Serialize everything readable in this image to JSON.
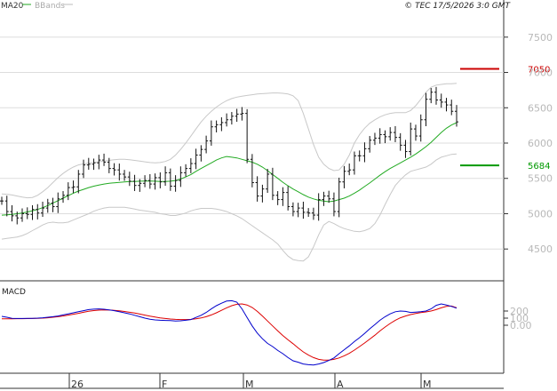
{
  "header": {
    "legend": [
      {
        "label": "MA20",
        "color": "#22aa22"
      },
      {
        "label": "BBands",
        "color": "#bbbbbb"
      }
    ],
    "copyright": "© TEC 17/5/2026 3:0 GMT"
  },
  "macd_panel": {
    "title": "MACD"
  },
  "chart_data": [
    {
      "type": "ohlc",
      "ylim": [
        4100,
        7900
      ],
      "y_ticks": [
        4500,
        5000,
        5500,
        6000,
        6500,
        7000,
        7500
      ],
      "y_tick_labels": [
        "4500",
        "5000",
        "5500",
        "6000",
        "6500",
        "7000",
        "7500"
      ],
      "grid": true,
      "x_tick_labels": [
        "26",
        "F",
        "M",
        "A",
        "M"
      ],
      "levels": [
        {
          "label": "7050",
          "value": 7050,
          "color": "#cc0000"
        },
        {
          "label": "5684",
          "value": 5684,
          "color": "#009900"
        }
      ],
      "series": [
        {
          "name": "Price",
          "values": [
            5180,
            5030,
            4970,
            4940,
            5000,
            4990,
            5060,
            5010,
            5080,
            5150,
            5100,
            5210,
            5260,
            5370,
            5380,
            5560,
            5690,
            5700,
            5720,
            5760,
            5730,
            5640,
            5620,
            5560,
            5520,
            5460,
            5400,
            5430,
            5470,
            5420,
            5510,
            5450,
            5580,
            5390,
            5470,
            5580,
            5640,
            5710,
            5830,
            5910,
            6030,
            6230,
            6260,
            6290,
            6330,
            6380,
            6410,
            6420,
            5770,
            5440,
            5250,
            5350,
            5560,
            5260,
            5200,
            5300,
            5100,
            5030,
            5080,
            5020,
            5010,
            4980,
            5200,
            5250,
            5210,
            5030,
            5450,
            5600,
            5620,
            5820,
            5820,
            5920,
            6040,
            6070,
            6120,
            6090,
            6150,
            6080,
            5970,
            5880,
            6200,
            6100,
            6330,
            6620,
            6720,
            6610,
            6580,
            6540,
            6450,
            6300
          ]
        },
        {
          "name": "MA20",
          "values": [
            4980,
            4985,
            4990,
            5000,
            5010,
            5025,
            5040,
            5060,
            5085,
            5115,
            5150,
            5185,
            5220,
            5255,
            5290,
            5320,
            5345,
            5370,
            5390,
            5405,
            5420,
            5430,
            5437,
            5444,
            5450,
            5455,
            5457,
            5460,
            5462,
            5462,
            5460,
            5457,
            5456,
            5460,
            5470,
            5490,
            5520,
            5555,
            5600,
            5640,
            5680,
            5720,
            5760,
            5790,
            5810,
            5800,
            5790,
            5770,
            5750,
            5730,
            5700,
            5660,
            5610,
            5555,
            5500,
            5445,
            5395,
            5350,
            5310,
            5270,
            5235,
            5210,
            5190,
            5180,
            5170,
            5180,
            5200,
            5220,
            5250,
            5290,
            5335,
            5385,
            5435,
            5490,
            5545,
            5595,
            5640,
            5680,
            5720,
            5760,
            5800,
            5845,
            5895,
            5950,
            6010,
            6080,
            6150,
            6210,
            6255,
            6290
          ]
        },
        {
          "name": "BBands upper",
          "values": [
            5280,
            5275,
            5265,
            5250,
            5235,
            5225,
            5230,
            5260,
            5310,
            5370,
            5440,
            5510,
            5570,
            5620,
            5660,
            5690,
            5705,
            5715,
            5725,
            5735,
            5745,
            5755,
            5765,
            5770,
            5770,
            5765,
            5755,
            5745,
            5735,
            5725,
            5720,
            5725,
            5740,
            5770,
            5830,
            5910,
            6000,
            6100,
            6200,
            6300,
            6380,
            6450,
            6510,
            6560,
            6600,
            6630,
            6650,
            6665,
            6675,
            6685,
            6695,
            6700,
            6705,
            6710,
            6710,
            6705,
            6695,
            6670,
            6600,
            6420,
            6200,
            5980,
            5800,
            5700,
            5640,
            5610,
            5620,
            5700,
            5830,
            6000,
            6120,
            6210,
            6280,
            6330,
            6370,
            6400,
            6420,
            6430,
            6430,
            6430,
            6460,
            6530,
            6620,
            6720,
            6790,
            6820,
            6830,
            6840,
            6840,
            6845
          ]
        },
        {
          "name": "BBands lower",
          "values": [
            4640,
            4650,
            4660,
            4670,
            4690,
            4720,
            4760,
            4800,
            4840,
            4870,
            4880,
            4870,
            4870,
            4880,
            4910,
            4940,
            4970,
            5000,
            5035,
            5060,
            5080,
            5090,
            5090,
            5090,
            5090,
            5080,
            5065,
            5050,
            5040,
            5030,
            5020,
            5000,
            4990,
            4975,
            4975,
            4990,
            5010,
            5040,
            5060,
            5075,
            5075,
            5075,
            5065,
            5050,
            5030,
            5000,
            4970,
            4930,
            4880,
            4830,
            4780,
            4730,
            4680,
            4630,
            4570,
            4480,
            4400,
            4350,
            4335,
            4330,
            4390,
            4530,
            4700,
            4840,
            4890,
            4860,
            4820,
            4790,
            4770,
            4750,
            4745,
            4760,
            4790,
            4860,
            4980,
            5130,
            5270,
            5400,
            5480,
            5550,
            5600,
            5620,
            5640,
            5660,
            5700,
            5760,
            5800,
            5820,
            5840,
            5845
          ]
        }
      ]
    },
    {
      "type": "line",
      "ylim": [
        -650,
        600
      ],
      "y_ticks": [
        0,
        100,
        200
      ],
      "y_tick_labels": [
        "0.00",
        "100",
        "200"
      ],
      "series": [
        {
          "name": "MACD",
          "values": [
            125,
            112,
            98,
            95,
            95,
            96,
            98,
            100,
            105,
            112,
            120,
            130,
            145,
            160,
            175,
            190,
            205,
            220,
            226,
            230,
            225,
            215,
            205,
            190,
            175,
            160,
            140,
            120,
            100,
            85,
            75,
            70,
            68,
            65,
            60,
            63,
            70,
            80,
            110,
            140,
            180,
            230,
            275,
            310,
            340,
            345,
            325,
            230,
            110,
            -10,
            -110,
            -190,
            -255,
            -300,
            -355,
            -400,
            -455,
            -500,
            -520,
            -545,
            -555,
            -560,
            -545,
            -525,
            -495,
            -460,
            -400,
            -345,
            -290,
            -230,
            -175,
            -115,
            -50,
            10,
            70,
            120,
            160,
            190,
            200,
            195,
            180,
            185,
            190,
            200,
            230,
            280,
            300,
            285,
            265,
            240
          ]
        },
        {
          "name": "Signal",
          "values": [
            90,
            90,
            91,
            92,
            93,
            94,
            95,
            97,
            100,
            105,
            112,
            120,
            130,
            142,
            155,
            168,
            182,
            196,
            206,
            212,
            215,
            214,
            210,
            203,
            194,
            183,
            171,
            157,
            143,
            128,
            115,
            104,
            95,
            88,
            83,
            80,
            80,
            83,
            90,
            102,
            120,
            145,
            175,
            210,
            245,
            275,
            295,
            300,
            285,
            250,
            195,
            130,
            60,
            -10,
            -80,
            -145,
            -205,
            -260,
            -320,
            -375,
            -420,
            -455,
            -480,
            -490,
            -490,
            -480,
            -460,
            -430,
            -395,
            -350,
            -300,
            -250,
            -195,
            -140,
            -80,
            -25,
            25,
            70,
            105,
            130,
            150,
            165,
            178,
            188,
            200,
            220,
            245,
            265,
            270,
            245
          ]
        }
      ]
    }
  ]
}
